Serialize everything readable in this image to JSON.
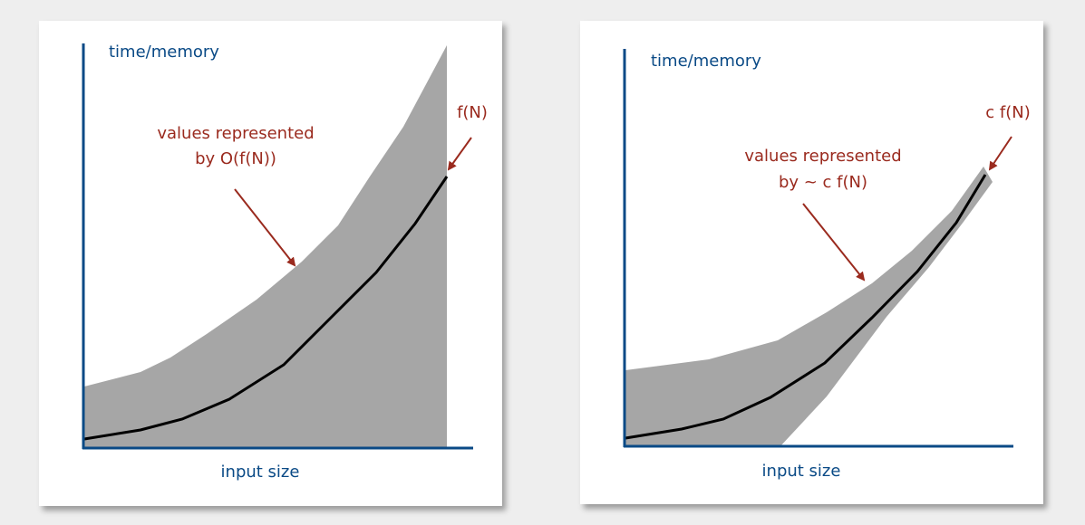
{
  "colors": {
    "axis": "#0a4a86",
    "region": "#a6a6a6",
    "curve": "#000000",
    "annotation": "#9a2a1e"
  },
  "left_panel": {
    "y_label": "time/memory",
    "x_label": "input size",
    "curve_label": "f(N)",
    "region_label_line1": "values represented",
    "region_label_line2": "by O(f(N))"
  },
  "right_panel": {
    "y_label": "time/memory",
    "x_label": "input size",
    "curve_label": "c f(N)",
    "region_label_line1": "values represented",
    "region_label_line2": "by ~ c f(N)"
  }
}
